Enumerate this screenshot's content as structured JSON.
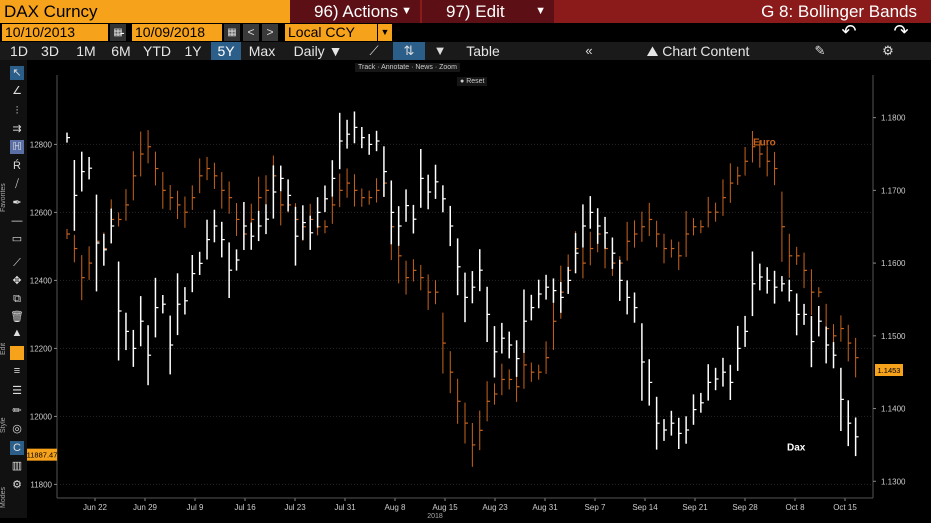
{
  "header": {
    "ticker": "DAX Curncy",
    "actions": "96) Actions",
    "edit": "97) Edit",
    "title": "G 8: Bollinger Bands"
  },
  "range": {
    "start": "10/10/2013",
    "dash": "-",
    "end": "10/09/2018",
    "currency": "Local CCY"
  },
  "toolbar": {
    "periods": [
      "1D",
      "3D",
      "1M",
      "6M",
      "YTD",
      "1Y",
      "5Y",
      "Max"
    ],
    "selected": "5Y",
    "frequency": "Daily",
    "table": "Table",
    "chart_content": "Chart Content"
  },
  "sidebar": {
    "favorites": "Favorites",
    "edit": "Edit",
    "style": "Style",
    "modes": "Modes"
  },
  "chart_controls": {
    "track": "Track",
    "annotate": "Annotate",
    "news": "News",
    "zoom": "Zoom",
    "reset": "Reset"
  },
  "colors": {
    "dax": "#ffffff",
    "euro": "#c8641e",
    "price_box": "#f7a21b"
  },
  "chart_data": {
    "type": "line",
    "left_axis": {
      "ticks": [
        11800,
        12000,
        12200,
        12400,
        12600,
        12800
      ],
      "ylim": [
        11760,
        12960
      ]
    },
    "right_axis": {
      "ticks": [
        "1.1300",
        "1.1400",
        "1.1500",
        "1.1600",
        "1.1700",
        "1.1800"
      ],
      "ylim": [
        1.1277,
        1.1838
      ]
    },
    "x_ticks": [
      "Jun 22",
      "Jun 29",
      "Jul 9",
      "Jul 16",
      "Jul 23",
      "Jul 31",
      "Aug 8",
      "Aug 15",
      "Aug 23",
      "Aug 31",
      "Sep 7",
      "Sep 14",
      "Sep 21",
      "Sep 28",
      "Oct 8",
      "Oct 15"
    ],
    "year_label": "2018",
    "series": [
      {
        "name": "Dax",
        "values": [
          12820,
          12650,
          12720,
          12730,
          12510,
          12490,
          12560,
          12310,
          12250,
          12200,
          12280,
          12180,
          12320,
          12330,
          12210,
          12330,
          12340,
          12420,
          12450,
          12520,
          12560,
          12520,
          12430,
          12460,
          12560,
          12530,
          12560,
          12580,
          12660,
          12700,
          12650,
          12530,
          12570,
          12540,
          12600,
          12640,
          12700,
          12810,
          12830,
          12850,
          12820,
          12800,
          12810,
          12720,
          12600,
          12560,
          12620,
          12580,
          12700,
          12660,
          12690,
          12640,
          12560,
          12440,
          12350,
          12380,
          12430,
          12300,
          12190,
          12230,
          12210,
          12170,
          12280,
          12320,
          12360,
          12380,
          12370,
          12350,
          12400,
          12480,
          12560,
          12600,
          12560,
          12540,
          12480,
          12400,
          12350,
          12320,
          12160,
          12100,
          11980,
          11960,
          11980,
          11950,
          11960,
          12020,
          12040,
          12100,
          12110,
          12130,
          12100,
          12200,
          12250,
          12390,
          12410,
          12400,
          12380,
          12390,
          12370,
          12300,
          12300,
          12220,
          12280,
          12210,
          12180,
          12050,
          11980,
          11940
        ],
        "label": "Dax",
        "last": "11887.47"
      },
      {
        "name": "Euro",
        "values": [
          1.164,
          1.162,
          1.158,
          1.16,
          1.163,
          1.162,
          1.166,
          1.166,
          1.168,
          1.172,
          1.175,
          1.176,
          1.173,
          1.17,
          1.169,
          1.168,
          1.167,
          1.169,
          1.172,
          1.173,
          1.172,
          1.17,
          1.169,
          1.166,
          1.164,
          1.166,
          1.169,
          1.17,
          1.172,
          1.168,
          1.168,
          1.166,
          1.165,
          1.166,
          1.165,
          1.165,
          1.168,
          1.17,
          1.171,
          1.17,
          1.169,
          1.169,
          1.17,
          1.171,
          1.165,
          1.161,
          1.158,
          1.159,
          1.158,
          1.156,
          1.156,
          1.149,
          1.145,
          1.141,
          1.138,
          1.135,
          1.137,
          1.141,
          1.142,
          1.144,
          1.144,
          1.143,
          1.146,
          1.145,
          1.145,
          1.147,
          1.152,
          1.156,
          1.159,
          1.162,
          1.16,
          1.162,
          1.164,
          1.162,
          1.16,
          1.16,
          1.163,
          1.164,
          1.165,
          1.166,
          1.164,
          1.162,
          1.162,
          1.161,
          1.164,
          1.165,
          1.165,
          1.167,
          1.167,
          1.169,
          1.171,
          1.172,
          1.174,
          1.176,
          1.175,
          1.174,
          1.173,
          1.165,
          1.161,
          1.161,
          1.159,
          1.156,
          1.156,
          1.151,
          1.15,
          1.151,
          1.149,
          1.147
        ],
        "label": "Euro",
        "last": "1.1453"
      }
    ]
  }
}
